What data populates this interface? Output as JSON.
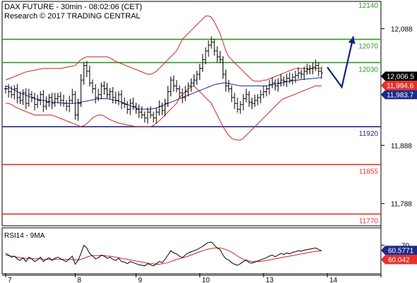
{
  "header": {
    "title": "DAX FUTURE - 30min - 08:02:06 (CET)",
    "research": "Research © 2017 TRADING CENTRAL"
  },
  "colors": {
    "resistance": "#2e9a1f",
    "pivot": "#1f2a8a",
    "support": "#e8302a",
    "bollinger": "#d42222",
    "ma": "#1f2a8a",
    "price": "#000000",
    "arrow": "#12237a",
    "tag_dark": "#000000",
    "tag_red": "#e8302a",
    "tag_blue": "#1f2a8a"
  },
  "chart_data": [
    {
      "type": "line",
      "name": "price-panel",
      "ylim": [
        11750,
        12135
      ],
      "y_ticks": [
        {
          "value": 12088,
          "label": "12,088"
        },
        {
          "value": 11888,
          "label": "11,888"
        },
        {
          "value": 11788,
          "label": "11,788"
        }
      ],
      "x_ticks": [
        {
          "label": "7",
          "index": 0
        },
        {
          "label": "8",
          "index": 24
        },
        {
          "label": "9",
          "index": 45
        },
        {
          "label": "10",
          "index": 67
        },
        {
          "label": "13",
          "index": 89
        },
        {
          "label": "14",
          "index": 111
        }
      ],
      "levels": [
        {
          "value": 12140,
          "label": "12140",
          "kind": "resistance"
        },
        {
          "value": 12070,
          "label": "12070",
          "kind": "resistance"
        },
        {
          "value": 12030,
          "label": "12030",
          "kind": "resistance"
        },
        {
          "value": 11920,
          "label": "11920",
          "kind": "pivot"
        },
        {
          "value": 11855,
          "label": "11855",
          "kind": "support"
        },
        {
          "value": 11770,
          "label": "11770",
          "kind": "support"
        }
      ],
      "price": [
        11985,
        11980,
        11975,
        11985,
        11970,
        11965,
        11978,
        11960,
        11975,
        11970,
        11958,
        11965,
        11975,
        11955,
        11962,
        11970,
        11960,
        11968,
        11972,
        11965,
        11960,
        11955,
        11965,
        11975,
        11940,
        11960,
        12000,
        12025,
        12015,
        11995,
        11985,
        11970,
        11975,
        11990,
        11985,
        11975,
        11980,
        11970,
        11965,
        11975,
        11960,
        11958,
        11950,
        11960,
        11955,
        11950,
        11945,
        11940,
        11935,
        11945,
        11940,
        11935,
        11945,
        11955,
        11948,
        11960,
        11980,
        12000,
        11990,
        11985,
        11978,
        11970,
        11980,
        11990,
        11995,
        12000,
        12010,
        12020,
        12035,
        12050,
        12060,
        12065,
        12050,
        12040,
        12035,
        12010,
        11990,
        11985,
        11970,
        11960,
        11950,
        11958,
        11968,
        11975,
        11962,
        11960,
        11965,
        11970,
        11975,
        11980,
        11985,
        11992,
        11995,
        11990,
        11995,
        12000,
        11998,
        12003,
        12000,
        12005,
        12008,
        12012,
        12010,
        12015,
        12018,
        12020,
        12022,
        12025,
        12015,
        12012
      ],
      "bollinger_upper": [
        12000,
        12002,
        12004,
        12006,
        12008,
        12010,
        12012,
        12014,
        12015,
        12016,
        12017,
        12018,
        12019,
        12020,
        12020,
        12020,
        12020,
        12020,
        12020,
        12020,
        12021,
        12022,
        12023,
        12024,
        12025,
        12030,
        12035,
        12038,
        12040,
        12040,
        12040,
        12040,
        12040,
        12040,
        12040,
        12040,
        12038,
        12035,
        12032,
        12030,
        12028,
        12026,
        12024,
        12022,
        12020,
        12018,
        12016,
        12014,
        12012,
        12010,
        12010,
        12012,
        12015,
        12020,
        12025,
        12030,
        12035,
        12040,
        12045,
        12050,
        12060,
        12070,
        12075,
        12080,
        12085,
        12090,
        12095,
        12100,
        12105,
        12110,
        12110,
        12108,
        12100,
        12090,
        12080,
        12065,
        12050,
        12040,
        12035,
        12030,
        12025,
        12020,
        12015,
        12010,
        12005,
        12000,
        11998,
        11998,
        11998,
        12000,
        12000,
        12002,
        12004,
        12006,
        12008,
        12010,
        12012,
        12014,
        12016,
        12018,
        12020,
        12020,
        12020,
        12020,
        12020,
        12020,
        12020,
        12020,
        12020,
        12020
      ],
      "bollinger_lower": [
        11960,
        11960,
        11958,
        11955,
        11952,
        11950,
        11948,
        11946,
        11944,
        11942,
        11940,
        11940,
        11940,
        11940,
        11940,
        11940,
        11940,
        11938,
        11936,
        11934,
        11932,
        11930,
        11928,
        11926,
        11924,
        11922,
        11920,
        11922,
        11925,
        11930,
        11935,
        11938,
        11940,
        11940,
        11938,
        11935,
        11932,
        11930,
        11928,
        11926,
        11925,
        11924,
        11923,
        11922,
        11921,
        11920,
        11920,
        11920,
        11920,
        11920,
        11920,
        11922,
        11926,
        11930,
        11935,
        11940,
        11945,
        11950,
        11955,
        11960,
        11970,
        11975,
        11980,
        11985,
        11988,
        11990,
        11985,
        11980,
        11975,
        11970,
        11965,
        11960,
        11950,
        11940,
        11930,
        11920,
        11912,
        11905,
        11900,
        11898,
        11897,
        11897,
        11900,
        11905,
        11910,
        11915,
        11920,
        11925,
        11930,
        11935,
        11940,
        11945,
        11950,
        11955,
        11960,
        11965,
        11968,
        11970,
        11972,
        11974,
        11976,
        11978,
        11980,
        11982,
        11984,
        11986,
        11988,
        11990,
        11990,
        11990
      ],
      "ma": [
        11990,
        11988,
        11985,
        11983,
        11980,
        11978,
        11976,
        11974,
        11972,
        11970,
        11968,
        11967,
        11966,
        11965,
        11964,
        11963,
        11962,
        11962,
        11961,
        11961,
        11960,
        11960,
        11960,
        11960,
        11960,
        11961,
        11962,
        11963,
        11964,
        11965,
        11966,
        11967,
        11968,
        11968,
        11968,
        11968,
        11967,
        11966,
        11965,
        11964,
        11962,
        11960,
        11958,
        11956,
        11954,
        11952,
        11950,
        11950,
        11950,
        11950,
        11950,
        11951,
        11952,
        11954,
        11956,
        11958,
        11960,
        11962,
        11964,
        11966,
        11968,
        11970,
        11972,
        11974,
        11976,
        11978,
        11980,
        11982,
        11984,
        11986,
        11988,
        11990,
        11992,
        11993,
        11994,
        11995,
        11995,
        11994,
        11993,
        11992,
        11991,
        11990,
        11990,
        11990,
        11990,
        11990,
        11990,
        11990,
        11990,
        11990,
        11990,
        11991,
        11992,
        11993,
        11994,
        11995,
        11996,
        11997,
        11998,
        11999,
        12000,
        12000,
        12001,
        12001,
        12002,
        12002,
        12003,
        12003,
        12004,
        12004
      ],
      "projection": [
        {
          "index": 111,
          "value": 12022
        },
        {
          "index": 116,
          "value": 11988
        },
        {
          "index": 120,
          "value": 12075
        }
      ],
      "tags": [
        {
          "text": "12,006.5",
          "value": 12006.5,
          "style": "tag_dark"
        },
        {
          "text": "11,994.6",
          "value": 11994.6,
          "style": "tag_red"
        },
        {
          "text": "11,983.7",
          "value": 11983.7,
          "style": "tag_blue"
        }
      ]
    },
    {
      "type": "line",
      "name": "rsi-panel",
      "title": "RSI14 - 9MA",
      "ylim": [
        20,
        80
      ],
      "y_ticks": [
        {
          "value": 70,
          "label": "70"
        }
      ],
      "rsi": [
        55,
        52,
        48,
        50,
        45,
        42,
        47,
        40,
        48,
        45,
        40,
        43,
        48,
        40,
        44,
        47,
        42,
        46,
        48,
        45,
        42,
        40,
        45,
        50,
        35,
        42,
        55,
        70,
        65,
        55,
        50,
        45,
        47,
        52,
        50,
        46,
        48,
        44,
        42,
        46,
        40,
        39,
        36,
        40,
        38,
        36,
        34,
        33,
        32,
        36,
        34,
        32,
        36,
        40,
        38,
        44,
        52,
        60,
        56,
        54,
        50,
        47,
        52,
        56,
        58,
        60,
        62,
        65,
        68,
        72,
        75,
        76,
        70,
        65,
        62,
        52,
        45,
        43,
        38,
        35,
        33,
        36,
        40,
        43,
        38,
        37,
        39,
        41,
        43,
        45,
        47,
        50,
        52,
        49,
        52,
        55,
        53,
        56,
        54,
        57,
        58,
        60,
        59,
        61,
        62,
        63,
        64,
        65,
        62,
        60
      ],
      "rsi_ma": [
        52,
        51,
        50,
        49,
        48,
        47,
        46,
        46,
        46,
        45,
        45,
        45,
        45,
        44,
        44,
        44,
        44,
        44,
        44,
        44,
        44,
        44,
        44,
        44,
        43,
        43,
        44,
        46,
        48,
        50,
        51,
        51,
        51,
        51,
        51,
        50,
        50,
        49,
        48,
        47,
        46,
        45,
        44,
        43,
        42,
        41,
        40,
        39,
        38,
        37,
        36,
        36,
        35,
        35,
        36,
        37,
        38,
        40,
        42,
        44,
        45,
        47,
        48,
        50,
        52,
        54,
        56,
        58,
        60,
        62,
        63,
        64,
        65,
        65,
        65,
        64,
        62,
        60,
        57,
        54,
        50,
        47,
        44,
        42,
        41,
        40,
        40,
        40,
        40,
        41,
        42,
        43,
        44,
        45,
        46,
        47,
        48,
        49,
        50,
        51,
        52,
        53,
        54,
        55,
        56,
        57,
        58,
        59,
        59,
        60
      ],
      "tags": [
        {
          "text": "60.5771",
          "value": 60.5771,
          "style": "tag_blue"
        },
        {
          "text": "60.042",
          "value": 60.042,
          "style": "tag_red"
        }
      ]
    }
  ]
}
